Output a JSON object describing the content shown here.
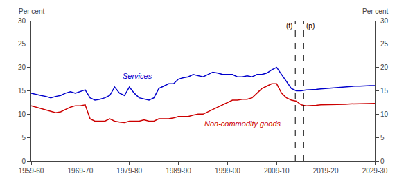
{
  "chart_data": {
    "type": "line",
    "x": [
      1959.5,
      1960.5,
      1961.5,
      1962.5,
      1963.5,
      1964.5,
      1965.5,
      1966.5,
      1967.5,
      1968.5,
      1969.5,
      1970.5,
      1971.5,
      1972.5,
      1973.5,
      1974.5,
      1975.5,
      1976.5,
      1977.5,
      1978.5,
      1979.5,
      1980.5,
      1981.5,
      1982.5,
      1983.5,
      1984.5,
      1985.5,
      1986.5,
      1987.5,
      1988.5,
      1989.5,
      1990.5,
      1991.5,
      1992.5,
      1993.5,
      1994.5,
      1995.5,
      1996.5,
      1997.5,
      1998.5,
      1999.5,
      2000.5,
      2001.5,
      2002.5,
      2003.5,
      2004.5,
      2005.5,
      2006.5,
      2007.5,
      2008.5,
      2009.5,
      2010.5,
      2011.5,
      2012.5,
      2013.5,
      2014.5,
      2015.5,
      2016.5,
      2017.5,
      2018.5,
      2019.5,
      2020.5,
      2021.5,
      2022.5,
      2023.5,
      2024.5,
      2025.5,
      2026.5,
      2027.5,
      2028.5,
      2029.5
    ],
    "series": [
      {
        "name": "Services",
        "color": "#0000cc",
        "values": [
          14.5,
          14.2,
          14.0,
          13.8,
          13.5,
          13.8,
          14.0,
          14.5,
          14.8,
          14.5,
          14.8,
          15.2,
          13.5,
          13.0,
          13.2,
          13.5,
          14.0,
          15.8,
          14.5,
          14.0,
          15.8,
          14.5,
          13.5,
          13.2,
          13.0,
          13.5,
          15.5,
          16.0,
          16.5,
          16.5,
          17.5,
          17.8,
          18.0,
          18.5,
          18.2,
          18.0,
          18.5,
          19.0,
          18.8,
          18.5,
          18.5,
          18.5,
          18.0,
          18.0,
          18.2,
          18.0,
          18.5,
          18.5,
          18.8,
          19.5,
          20.0,
          18.5,
          17.0,
          15.5,
          15.0,
          15.0,
          15.2,
          15.2,
          15.3,
          15.4,
          15.5,
          15.5,
          15.6,
          15.7,
          15.8,
          15.9,
          16.0,
          16.0,
          16.1,
          16.1,
          16.1
        ]
      },
      {
        "name": "Non-commodity goods",
        "color": "#cc0000",
        "values": [
          11.8,
          11.5,
          11.2,
          10.8,
          10.5,
          10.3,
          10.5,
          11.0,
          11.5,
          11.8,
          11.8,
          12.0,
          9.0,
          8.5,
          8.5,
          8.5,
          9.0,
          8.5,
          8.3,
          8.2,
          8.5,
          8.5,
          8.5,
          8.8,
          8.5,
          8.5,
          9.0,
          9.0,
          9.0,
          9.2,
          9.5,
          9.5,
          9.5,
          9.8,
          10.0,
          10.0,
          10.5,
          11.0,
          11.5,
          12.0,
          12.5,
          13.0,
          13.0,
          13.2,
          13.2,
          13.5,
          14.5,
          15.5,
          16.0,
          16.5,
          16.5,
          14.5,
          13.5,
          13.0,
          12.8,
          12.0,
          11.8,
          11.8,
          11.9,
          12.0,
          12.0,
          12.0,
          12.0,
          12.1,
          12.1,
          12.2,
          12.2,
          12.3,
          12.3,
          12.3,
          12.3
        ]
      }
    ],
    "xlim": [
      1959.5,
      2029.5
    ],
    "xticks": [
      {
        "value": 1959.5,
        "label": "1959-60"
      },
      {
        "value": 1969.5,
        "label": "1969-70"
      },
      {
        "value": 1979.5,
        "label": "1979-80"
      },
      {
        "value": 1989.5,
        "label": "1989-90"
      },
      {
        "value": 1999.5,
        "label": "1999-00"
      },
      {
        "value": 2009.5,
        "label": "2009-10"
      },
      {
        "value": 2019.5,
        "label": "2019-20"
      },
      {
        "value": 2029.5,
        "label": "2029-30"
      }
    ],
    "ylim": [
      0,
      30
    ],
    "yticks": [
      0,
      5,
      10,
      15,
      20,
      25,
      30
    ],
    "y2lim": [
      0,
      30
    ],
    "y2ticks": [
      0,
      5,
      10,
      15,
      20,
      25,
      30
    ],
    "ylabel": "Per cent",
    "y2label": "Per cent",
    "vlines": [
      {
        "x": 2013.3,
        "label": "(f)"
      },
      {
        "x": 2015.0,
        "label": "(p)"
      }
    ],
    "grid": false
  }
}
